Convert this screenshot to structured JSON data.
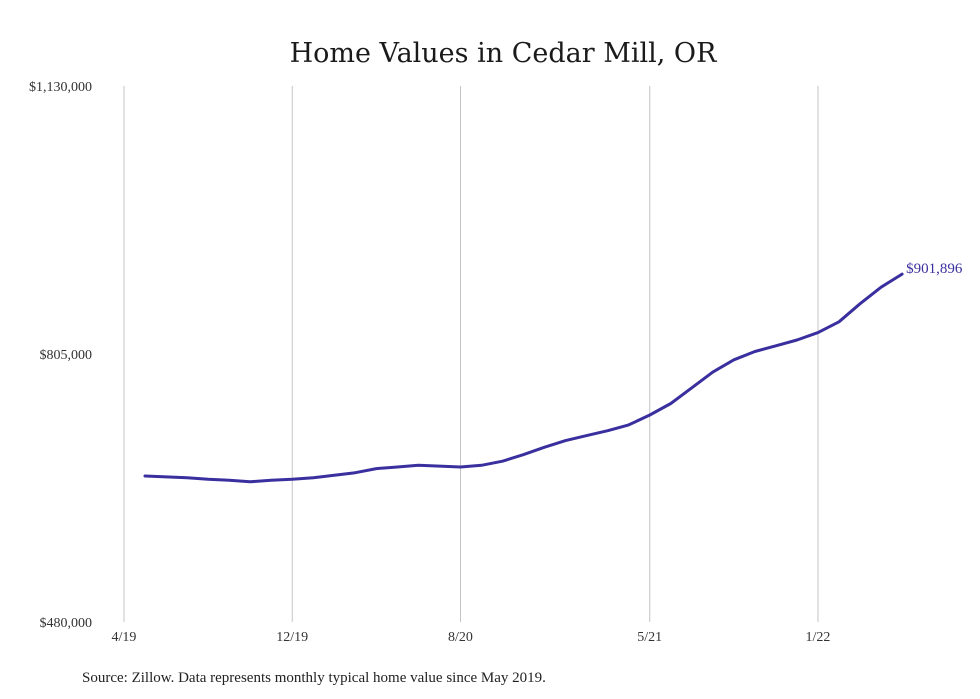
{
  "chart_data": {
    "type": "line",
    "title": "Home Values in Cedar Mill, OR",
    "xlabel": "",
    "ylabel": "",
    "ylim": [
      480000,
      1130000
    ],
    "y_ticks": [
      "$1,130,000",
      "$805,000",
      "$480,000"
    ],
    "y_tick_values": [
      1130000,
      805000,
      480000
    ],
    "x_ticks": [
      "4/19",
      "12/19",
      "8/20",
      "5/21",
      "1/22"
    ],
    "x_tick_months": [
      "2019-04",
      "2019-12",
      "2020-08",
      "2021-05",
      "2022-01"
    ],
    "grid": "vertical",
    "line_color": "#3a2f9e",
    "end_label": "$901,896",
    "series": [
      {
        "x": [
          "2019-05",
          "2019-06",
          "2019-07",
          "2019-08",
          "2019-09",
          "2019-10",
          "2019-11",
          "2019-12",
          "2020-01",
          "2020-02",
          "2020-03",
          "2020-04",
          "2020-05",
          "2020-06",
          "2020-07",
          "2020-08",
          "2020-09",
          "2020-10",
          "2020-11",
          "2020-12",
          "2021-01",
          "2021-02",
          "2021-03",
          "2021-04",
          "2021-05",
          "2021-06",
          "2021-07",
          "2021-08",
          "2021-09",
          "2021-10",
          "2021-11",
          "2021-12",
          "2022-01",
          "2022-02",
          "2022-03",
          "2022-04",
          "2022-05"
        ],
        "values": [
          657000,
          656000,
          655000,
          653000,
          652000,
          650000,
          652000,
          653000,
          655000,
          658000,
          661000,
          666000,
          668000,
          670000,
          669000,
          668000,
          670000,
          675000,
          683000,
          692000,
          700000,
          706000,
          712000,
          719000,
          731000,
          745000,
          764000,
          783000,
          798000,
          808000,
          815000,
          822000,
          831000,
          844000,
          866000,
          886000,
          901896
        ]
      }
    ]
  },
  "source_note": "Source: Zillow. Data represents monthly typical home value since May 2019."
}
